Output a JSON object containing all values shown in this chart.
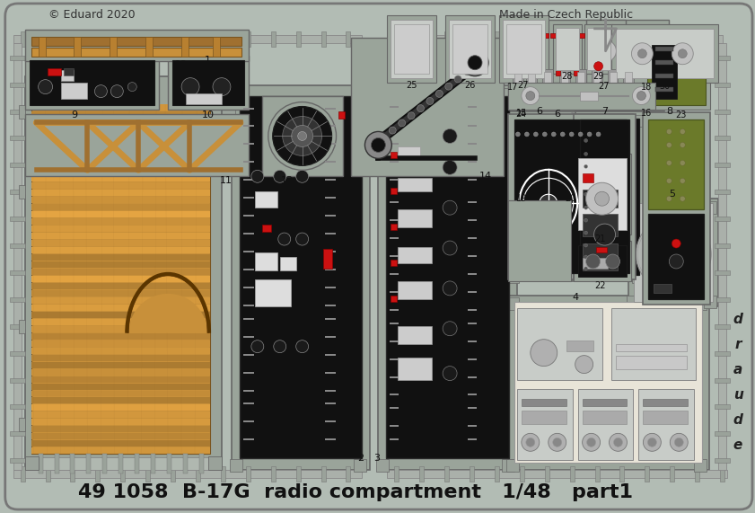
{
  "title": "49 1058  B-17G  radio compartment   1/48   part1",
  "bg_color": "#b2bcb4",
  "border_color": "#888888",
  "text_color": "#222222",
  "dark_part_color": "#111111",
  "grey_surround": "#9aa49a",
  "light_grey": "#c8ccc8",
  "wood_light": "#c8903a",
  "wood_dark": "#a07030",
  "wood_mid": "#b88030",
  "footer_left": "© Eduard 2020",
  "footer_right": "Made in Czech Republic",
  "brand": "eduard",
  "red_accent": "#cc1111",
  "olive_color": "#6b7a2a",
  "white_color": "#ffffff",
  "cream": "#e8e4d8",
  "sprue_color": "#9aA29a",
  "rail_color": "#aab0aa"
}
